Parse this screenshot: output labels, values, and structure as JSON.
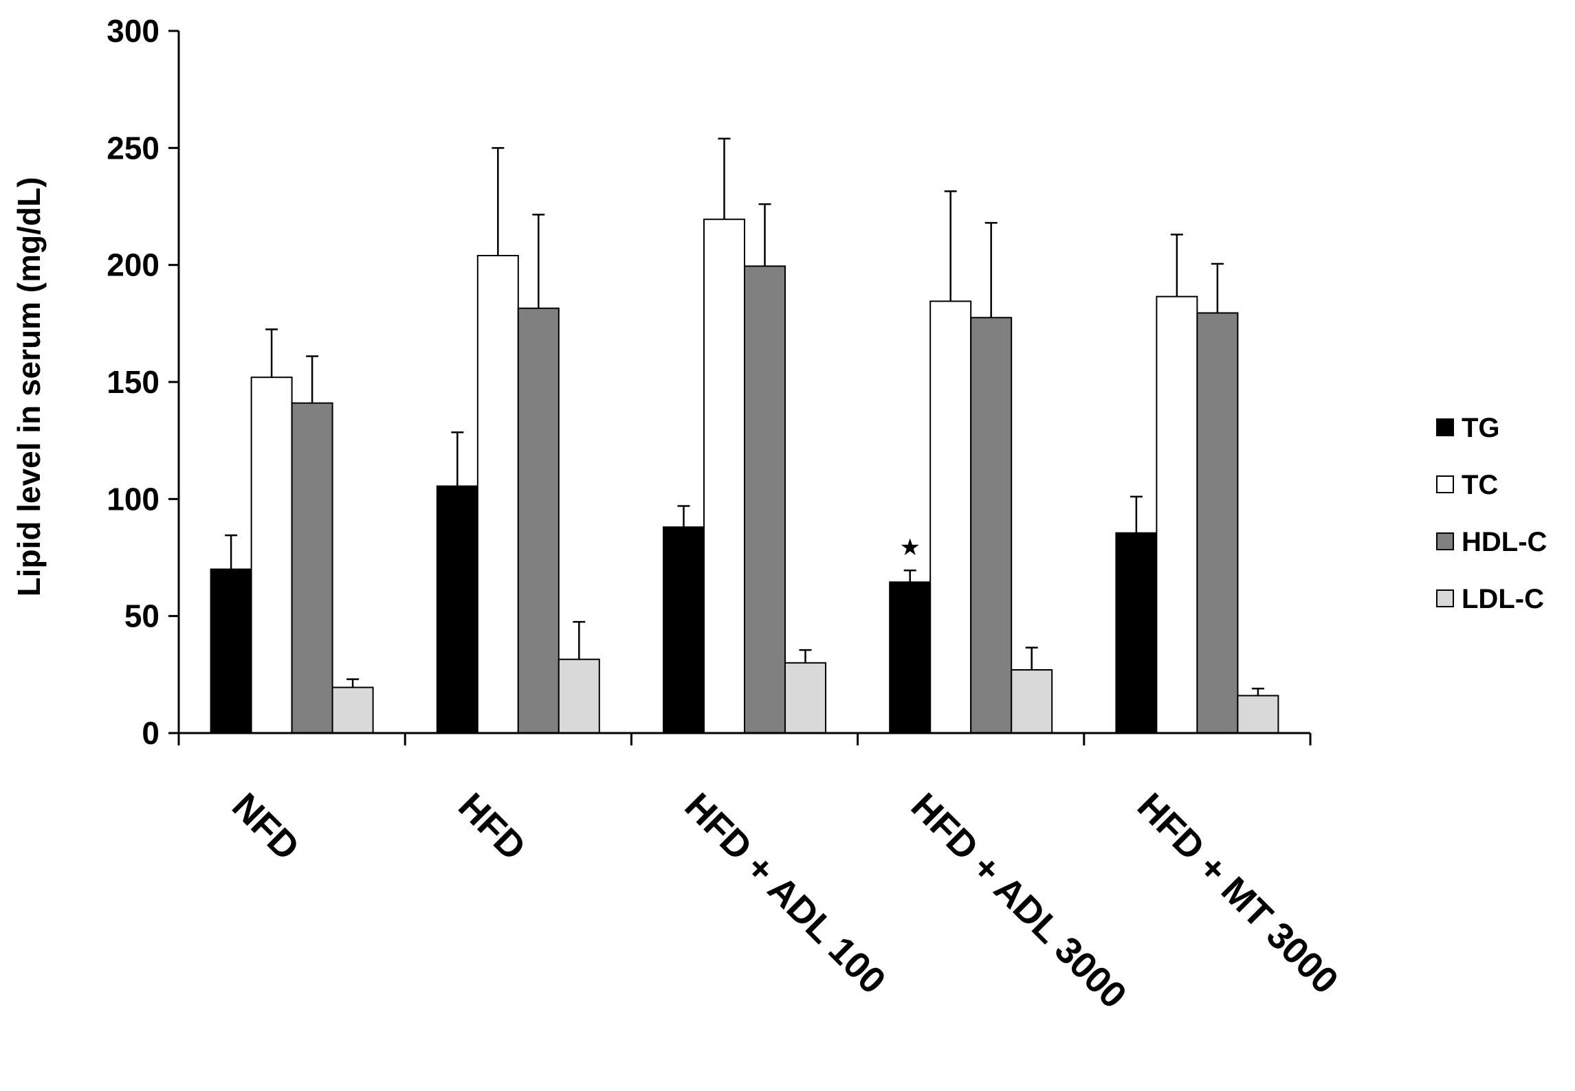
{
  "chart_data": {
    "type": "bar",
    "title": "",
    "xlabel": "",
    "ylabel": "Lipid level in serum (mg/dL)",
    "ylim": [
      0,
      300
    ],
    "yticks": [
      "0",
      "50",
      "100",
      "150",
      "200",
      "250",
      "300"
    ],
    "grid": false,
    "legend_position": "right",
    "categories": [
      "NFD",
      "HFD",
      "HFD + ADL 100",
      "HFD + ADL 3000",
      "HFD + MT 3000"
    ],
    "series": [
      {
        "name": "TG",
        "color": "#000000",
        "values": [
          70,
          105.5,
          88,
          64.5,
          85.5
        ],
        "errors": [
          14.5,
          23,
          9,
          5,
          15.5
        ]
      },
      {
        "name": "TC",
        "color": "#ffffff",
        "values": [
          152,
          204,
          219.5,
          184.5,
          186.5
        ],
        "errors": [
          20.5,
          46,
          34.5,
          47,
          26.5
        ]
      },
      {
        "name": "HDL-C",
        "color": "#808080",
        "values": [
          141,
          181.5,
          199.5,
          177.5,
          179.5
        ],
        "errors": [
          20,
          40,
          26.5,
          40.5,
          21
        ]
      },
      {
        "name": "LDL-C",
        "color": "#d9d9d9",
        "values": [
          19.5,
          31.5,
          30,
          27,
          16
        ],
        "errors": [
          3.5,
          16,
          5.5,
          9.5,
          3
        ]
      }
    ],
    "annotations": [
      {
        "text": "★",
        "category": "HFD + ADL 3000",
        "series": "TG"
      }
    ]
  }
}
